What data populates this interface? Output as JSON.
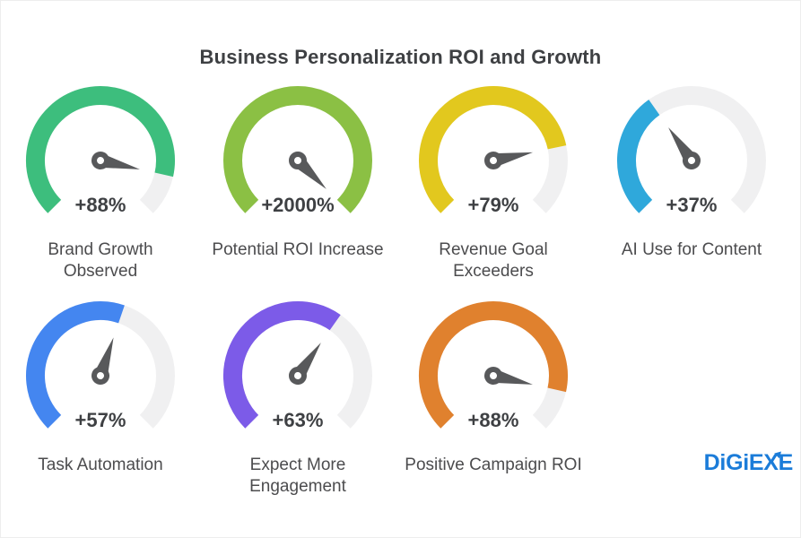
{
  "style": {
    "track_color": "#f0f0f1",
    "needle_color": "#58595b",
    "value_color": "#3e4043",
    "label_color": "#4c4c4e",
    "title_color": "#3e4043"
  },
  "logo": {
    "pre": "DiGiE",
    "x": "X",
    "post": "E",
    "color": "#1b7cd9"
  },
  "chart_data": {
    "type": "gauge",
    "title": "Business Personalization ROI and Growth",
    "gauge_start_deg": -135,
    "gauge_sweep_deg": 270,
    "legend_position": "none",
    "gauges": [
      {
        "label": "Brand Growth\nObserved",
        "value": 88,
        "value_label": "+88%",
        "fill_pct": 88,
        "color": "#3dbe7d"
      },
      {
        "label": "Potential ROI Increase",
        "value": 2000,
        "value_label": "+2000%",
        "fill_pct": 100,
        "color": "#8bc044"
      },
      {
        "label": "Revenue Goal\nExceeders",
        "value": 79,
        "value_label": "+79%",
        "fill_pct": 79,
        "color": "#e2c81e"
      },
      {
        "label": "AI Use for Content",
        "value": 37,
        "value_label": "+37%",
        "fill_pct": 37,
        "color": "#2fa8db"
      },
      {
        "label": "Task Automation",
        "value": 57,
        "value_label": "+57%",
        "fill_pct": 57,
        "color": "#4486f0"
      },
      {
        "label": "Expect More\nEngagement",
        "value": 63,
        "value_label": "+63%",
        "fill_pct": 63,
        "color": "#7c5be8"
      },
      {
        "label": "Positive Campaign ROI",
        "value": 88,
        "value_label": "+88%",
        "fill_pct": 88,
        "color": "#e0812e"
      }
    ]
  }
}
